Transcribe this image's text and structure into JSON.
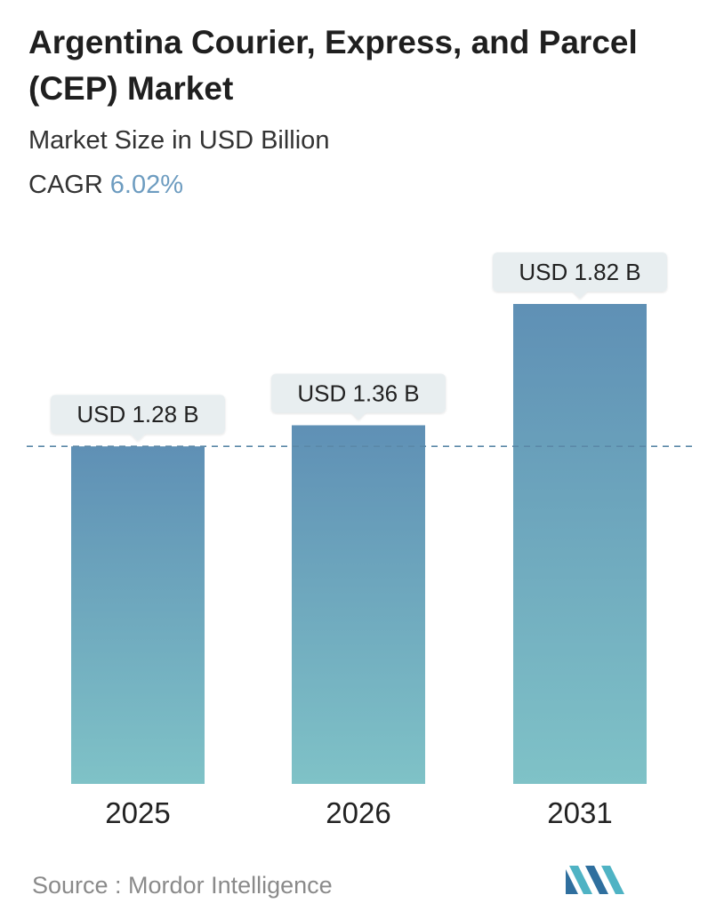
{
  "header": {
    "title": "Argentina Courier, Express, and Parcel (CEP) Market",
    "subtitle": "Market Size in USD Billion",
    "cagr_label": "CAGR",
    "cagr_value": "6.02%"
  },
  "chart_data": {
    "type": "bar",
    "categories": [
      "2025",
      "2026",
      "2031"
    ],
    "values": [
      1.28,
      1.36,
      1.82
    ],
    "value_labels": [
      "USD 1.28 B",
      "USD 1.36 B",
      "USD 1.82 B"
    ],
    "reference_line": 1.28,
    "ylim": [
      0,
      1.82
    ],
    "grid": false,
    "colors": {
      "bar_top": "#5f90b5",
      "bar_bottom": "#7fc2c7",
      "label_bg": "#e8eef0",
      "dashed_line": "#5b88a8",
      "axis_text": "#222222"
    }
  },
  "footer": {
    "source": "Source :  Mordor Intelligence",
    "logo_icon": "mordor-intelligence-logo-icon"
  }
}
